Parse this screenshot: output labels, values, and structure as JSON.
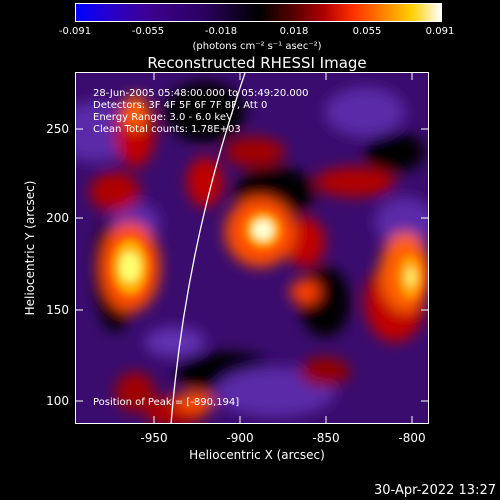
{
  "colorbar": {
    "ticks": [
      "-0.091",
      "-0.055",
      "-0.018",
      "0.018",
      "0.055",
      "0.091"
    ],
    "units": "(photons cm⁻² s⁻¹ asec⁻²)"
  },
  "title": "Reconstructed RHESSI Image",
  "info": {
    "time": "28-Jun-2005 05:48:00.000 to 05:49:20.000",
    "detectors": "Detectors: 3F 4F 5F 6F 7F 8F, Att 0",
    "energy": "Energy Range: 3.0 - 6.0 keV",
    "method": "Clean     Total counts: 1.78E+03",
    "peak": "Position of Peak = [-890,194]"
  },
  "axes": {
    "xlabel": "Heliocentric X (arcsec)",
    "ylabel": "Heliocentric Y (arcsec)",
    "xticks": [
      "-950",
      "-900",
      "-850",
      "-800"
    ],
    "yticks": [
      "250",
      "200",
      "150",
      "100"
    ]
  },
  "datestamp": "30-Apr-2022 13:27"
}
